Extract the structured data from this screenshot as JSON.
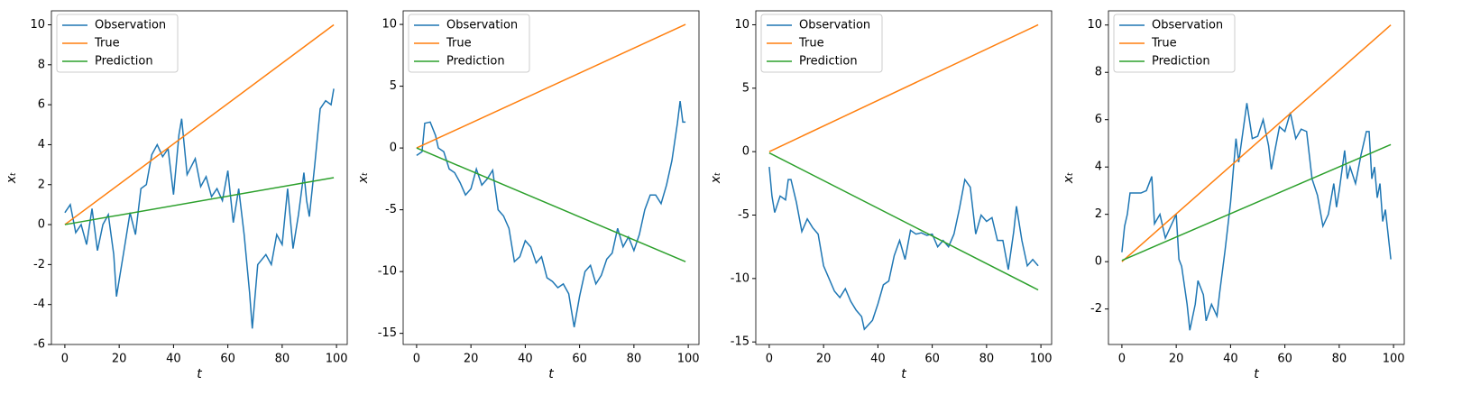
{
  "chart_data": [
    {
      "type": "line",
      "xlabel": "t",
      "ylabel": "xₜ",
      "xlim": [
        -4.95,
        103.95
      ],
      "ylim": [
        -6,
        10.7
      ],
      "xticks": [
        0,
        20,
        40,
        60,
        80,
        100
      ],
      "yticks": [
        -6,
        -4,
        -2,
        0,
        2,
        4,
        6,
        8,
        10
      ],
      "legend": "upper left",
      "series": [
        {
          "name": "Observation",
          "color": "#1f77b4",
          "x": [
            0,
            2,
            4,
            6,
            8,
            10,
            12,
            14,
            16,
            18,
            19,
            22,
            24,
            26,
            28,
            30,
            32,
            34,
            36,
            38,
            40,
            42,
            43,
            45,
            48,
            50,
            52,
            54,
            56,
            58,
            60,
            62,
            64,
            66,
            68,
            69,
            71,
            74,
            76,
            78,
            80,
            82,
            84,
            86,
            88,
            89,
            90,
            92,
            94,
            96,
            98,
            99
          ],
          "values": [
            0.6,
            1.0,
            -0.4,
            0,
            -1.0,
            0.8,
            -1.3,
            0,
            0.5,
            -1.5,
            -3.6,
            -1.1,
            0.6,
            -0.5,
            1.8,
            2.0,
            3.5,
            4.0,
            3.4,
            3.8,
            1.5,
            4.5,
            5.3,
            2.5,
            3.3,
            1.9,
            2.4,
            1.4,
            1.8,
            1.2,
            2.7,
            0.1,
            1.8,
            -0.5,
            -3.4,
            -5.2,
            -2.0,
            -1.5,
            -2.0,
            -0.5,
            -1.0,
            1.8,
            -1.2,
            0.5,
            2.6,
            1.2,
            0.4,
            3.0,
            5.8,
            6.2,
            6.0,
            6.8
          ]
        },
        {
          "name": "True",
          "color": "#ff7f0e",
          "x": [
            0,
            99
          ],
          "values": [
            0,
            10
          ]
        },
        {
          "name": "Prediction",
          "color": "#2ca02c",
          "x": [
            0,
            99
          ],
          "values": [
            0,
            2.35
          ]
        }
      ]
    },
    {
      "type": "line",
      "xlabel": "t",
      "ylabel": "xₜ",
      "xlim": [
        -4.95,
        103.95
      ],
      "ylim": [
        -15.9,
        11.1
      ],
      "xticks": [
        0,
        20,
        40,
        60,
        80,
        100
      ],
      "yticks": [
        -15,
        -10,
        -5,
        0,
        5,
        10
      ],
      "legend": "upper left",
      "series": [
        {
          "name": "Observation",
          "color": "#1f77b4",
          "x": [
            0,
            2,
            3,
            5,
            7,
            8,
            10,
            12,
            14,
            16,
            18,
            20,
            22,
            24,
            26,
            28,
            30,
            32,
            34,
            36,
            38,
            40,
            42,
            44,
            46,
            48,
            50,
            52,
            54,
            56,
            58,
            60,
            62,
            64,
            66,
            68,
            70,
            72,
            74,
            76,
            78,
            80,
            82,
            84,
            86,
            88,
            90,
            92,
            94,
            96,
            97,
            98,
            99
          ],
          "values": [
            -0.6,
            -0.3,
            2.0,
            2.1,
            1.0,
            0,
            -0.3,
            -1.7,
            -2.0,
            -2.8,
            -3.8,
            -3.3,
            -1.7,
            -3.0,
            -2.5,
            -1.8,
            -5.0,
            -5.5,
            -6.5,
            -9.2,
            -8.8,
            -7.5,
            -8.0,
            -9.3,
            -8.8,
            -10.5,
            -10.8,
            -11.3,
            -11.0,
            -11.8,
            -14.5,
            -12.0,
            -10.0,
            -9.5,
            -11.0,
            -10.3,
            -9.0,
            -8.5,
            -6.5,
            -8.0,
            -7.2,
            -8.3,
            -7.0,
            -5.0,
            -3.8,
            -3.8,
            -4.5,
            -3.0,
            -1.0,
            2.0,
            3.8,
            2.1,
            2.1
          ]
        },
        {
          "name": "True",
          "color": "#ff7f0e",
          "x": [
            0,
            99
          ],
          "values": [
            0,
            10
          ]
        },
        {
          "name": "Prediction",
          "color": "#2ca02c",
          "x": [
            0,
            99
          ],
          "values": [
            0,
            -9.2
          ]
        }
      ]
    },
    {
      "type": "line",
      "xlabel": "t",
      "ylabel": "xₜ",
      "xlim": [
        -4.95,
        103.95
      ],
      "ylim": [
        -15.2,
        11.1
      ],
      "xticks": [
        0,
        20,
        40,
        60,
        80,
        100
      ],
      "yticks": [
        -15,
        -10,
        -5,
        0,
        5,
        10
      ],
      "legend": "upper left",
      "series": [
        {
          "name": "Observation",
          "color": "#1f77b4",
          "x": [
            0,
            1,
            2,
            4,
            6,
            7,
            8,
            10,
            12,
            14,
            16,
            18,
            20,
            22,
            24,
            26,
            28,
            30,
            32,
            34,
            35,
            38,
            40,
            42,
            44,
            46,
            48,
            50,
            52,
            54,
            56,
            58,
            60,
            62,
            64,
            66,
            68,
            70,
            72,
            74,
            76,
            78,
            80,
            82,
            84,
            86,
            88,
            90,
            91,
            93,
            95,
            97,
            99
          ],
          "values": [
            -1.2,
            -3.5,
            -4.8,
            -3.5,
            -3.8,
            -2.2,
            -2.2,
            -4.0,
            -6.3,
            -5.3,
            -6.0,
            -6.5,
            -9.0,
            -10.0,
            -11.0,
            -11.5,
            -10.8,
            -11.8,
            -12.5,
            -13.0,
            -14.0,
            -13.3,
            -12.0,
            -10.5,
            -10.2,
            -8.2,
            -7.0,
            -8.5,
            -6.2,
            -6.5,
            -6.4,
            -6.6,
            -6.5,
            -7.5,
            -7.0,
            -7.5,
            -6.5,
            -4.5,
            -2.2,
            -2.8,
            -6.5,
            -5.0,
            -5.5,
            -5.2,
            -7.0,
            -7.0,
            -9.3,
            -6.3,
            -4.3,
            -7.0,
            -9.0,
            -8.5,
            -9.0
          ]
        },
        {
          "name": "True",
          "color": "#ff7f0e",
          "x": [
            0,
            99
          ],
          "values": [
            0,
            10
          ]
        },
        {
          "name": "Prediction",
          "color": "#2ca02c",
          "x": [
            0,
            99
          ],
          "values": [
            -0.1,
            -10.9
          ]
        }
      ]
    },
    {
      "type": "line",
      "xlabel": "t",
      "ylabel": "xₜ",
      "xlim": [
        -4.95,
        103.95
      ],
      "ylim": [
        -3.5,
        10.6
      ],
      "xticks": [
        0,
        20,
        40,
        60,
        80,
        100
      ],
      "yticks": [
        -2,
        0,
        2,
        4,
        6,
        8,
        10
      ],
      "legend": "upper left",
      "series": [
        {
          "name": "Observation",
          "color": "#1f77b4",
          "x": [
            0,
            1,
            2,
            3,
            5,
            7,
            9,
            11,
            12,
            14,
            16,
            18,
            20,
            21,
            22,
            24,
            25,
            27,
            28,
            30,
            31,
            33,
            35,
            36,
            38,
            40,
            42,
            43,
            46,
            48,
            50,
            52,
            54,
            55,
            58,
            60,
            62,
            64,
            66,
            68,
            70,
            72,
            74,
            76,
            78,
            79,
            80,
            82,
            83,
            84,
            86,
            88,
            90,
            91,
            92,
            93,
            94,
            95,
            96,
            97,
            99
          ],
          "values": [
            0.4,
            1.5,
            2.0,
            2.9,
            2.9,
            2.9,
            3.0,
            3.6,
            1.6,
            2.0,
            1.0,
            1.5,
            2.0,
            0.1,
            -0.2,
            -1.8,
            -2.9,
            -1.8,
            -0.8,
            -1.4,
            -2.5,
            -1.8,
            -2.3,
            -1.3,
            0.5,
            2.5,
            5.2,
            4.2,
            6.7,
            5.2,
            5.3,
            6.0,
            4.9,
            3.9,
            5.7,
            5.5,
            6.3,
            5.2,
            5.6,
            5.5,
            3.5,
            2.8,
            1.5,
            2.0,
            3.3,
            2.3,
            3.0,
            4.7,
            3.5,
            4.0,
            3.3,
            4.5,
            5.5,
            5.5,
            3.5,
            4.0,
            2.7,
            3.3,
            1.7,
            2.2,
            0.1
          ]
        },
        {
          "name": "True",
          "color": "#ff7f0e",
          "x": [
            0,
            99
          ],
          "values": [
            0,
            10
          ]
        },
        {
          "name": "Prediction",
          "color": "#2ca02c",
          "x": [
            0,
            99
          ],
          "values": [
            0.05,
            4.95
          ]
        }
      ]
    }
  ]
}
